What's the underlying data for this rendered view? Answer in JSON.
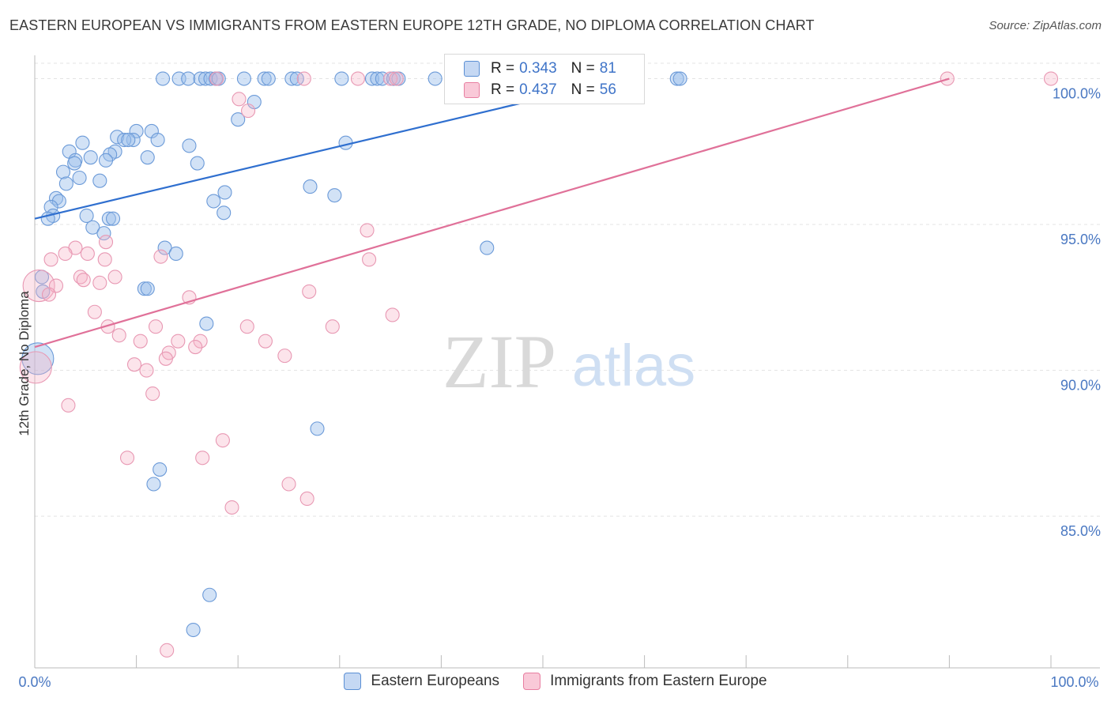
{
  "header": {
    "title": "EASTERN EUROPEAN VS IMMIGRANTS FROM EASTERN EUROPE 12TH GRADE, NO DIPLOMA CORRELATION CHART",
    "source": "Source: ZipAtlas.com"
  },
  "watermark": {
    "zip": "ZIP",
    "atlas": "atlas"
  },
  "legend": {
    "r_label": "R =",
    "n_label": "N =",
    "series1": {
      "r": "0.343",
      "n": "81"
    },
    "series2": {
      "r": "0.437",
      "n": "56"
    }
  },
  "chart_data": {
    "type": "scatter",
    "title": "EASTERN EUROPEAN VS IMMIGRANTS FROM EASTERN EUROPE 12TH GRADE, NO DIPLOMA CORRELATION CHART",
    "xlabel": "",
    "ylabel": "12th Grade, No Diploma",
    "xlim": [
      0,
      100
    ],
    "ylim": [
      79.8,
      100.8
    ],
    "x_tick_labels": [
      "0.0%",
      "100.0%"
    ],
    "y_ticks": [
      85,
      90,
      95,
      100
    ],
    "y_tick_labels": [
      "85.0%",
      "90.0%",
      "95.0%",
      "100.0%"
    ],
    "grid": true,
    "colors": {
      "series1": "#5b8fd4",
      "series2": "#e87fa1",
      "line1": "#2f6fcf",
      "line2": "#e07199"
    },
    "series": [
      {
        "name": "Eastern Europeans",
        "r": 0.343,
        "n": 81,
        "trend": {
          "x0": 0,
          "y0": 95.2,
          "x1": 58,
          "y1": 100
        },
        "points": [
          [
            12.6,
            100
          ],
          [
            14.2,
            100
          ],
          [
            15.1,
            100
          ],
          [
            16.3,
            100
          ],
          [
            16.8,
            100
          ],
          [
            17.3,
            100
          ],
          [
            17.8,
            100
          ],
          [
            18.1,
            100
          ],
          [
            20.6,
            100
          ],
          [
            22.6,
            100
          ],
          [
            23.0,
            100
          ],
          [
            25.3,
            100
          ],
          [
            25.8,
            100
          ],
          [
            30.2,
            100
          ],
          [
            33.2,
            100
          ],
          [
            33.7,
            100
          ],
          [
            34.2,
            100
          ],
          [
            35.3,
            100
          ],
          [
            35.8,
            100
          ],
          [
            39.4,
            100
          ],
          [
            63.2,
            100
          ],
          [
            63.5,
            100
          ],
          [
            49.5,
            100
          ],
          [
            48.0,
            100
          ],
          [
            21.6,
            99.2
          ],
          [
            20.0,
            98.6
          ],
          [
            10.0,
            98.2
          ],
          [
            11.5,
            98.2
          ],
          [
            8.1,
            98.0
          ],
          [
            9.7,
            97.9
          ],
          [
            8.8,
            97.9
          ],
          [
            9.2,
            97.9
          ],
          [
            12.1,
            97.9
          ],
          [
            4.7,
            97.8
          ],
          [
            15.2,
            97.7
          ],
          [
            30.6,
            97.8
          ],
          [
            3.4,
            97.5
          ],
          [
            5.5,
            97.3
          ],
          [
            7.9,
            97.5
          ],
          [
            7.4,
            97.4
          ],
          [
            11.1,
            97.3
          ],
          [
            4.0,
            97.2
          ],
          [
            3.9,
            97.1
          ],
          [
            7.0,
            97.2
          ],
          [
            16.0,
            97.1
          ],
          [
            2.8,
            96.8
          ],
          [
            4.4,
            96.6
          ],
          [
            3.1,
            96.4
          ],
          [
            6.4,
            96.5
          ],
          [
            27.1,
            96.3
          ],
          [
            18.7,
            96.1
          ],
          [
            29.5,
            96.0
          ],
          [
            2.1,
            95.9
          ],
          [
            2.4,
            95.8
          ],
          [
            17.6,
            95.8
          ],
          [
            1.6,
            95.6
          ],
          [
            1.8,
            95.3
          ],
          [
            5.1,
            95.3
          ],
          [
            7.3,
            95.2
          ],
          [
            7.7,
            95.2
          ],
          [
            1.3,
            95.2
          ],
          [
            18.6,
            95.4
          ],
          [
            5.7,
            94.9
          ],
          [
            6.8,
            94.7
          ],
          [
            12.8,
            94.2
          ],
          [
            13.9,
            94.0
          ],
          [
            44.5,
            94.2
          ],
          [
            0.7,
            93.2
          ],
          [
            0.8,
            92.7
          ],
          [
            10.8,
            92.8
          ],
          [
            11.1,
            92.8
          ],
          [
            16.9,
            91.6
          ],
          [
            0.3,
            90.4
          ],
          [
            27.8,
            88.0
          ],
          [
            12.3,
            86.6
          ],
          [
            11.7,
            86.1
          ],
          [
            17.2,
            82.3
          ],
          [
            15.6,
            81.1
          ]
        ]
      },
      {
        "name": "Immigrants from Eastern Europe",
        "r": 0.437,
        "n": 56,
        "trend": {
          "x0": 0,
          "y0": 90.8,
          "x1": 90,
          "y1": 100
        },
        "points": [
          [
            17.9,
            100
          ],
          [
            26.5,
            100
          ],
          [
            31.8,
            100
          ],
          [
            35.0,
            100
          ],
          [
            35.6,
            100
          ],
          [
            89.8,
            100
          ],
          [
            100,
            100
          ],
          [
            20.1,
            99.3
          ],
          [
            21.0,
            98.9
          ],
          [
            32.7,
            94.8
          ],
          [
            7.0,
            94.4
          ],
          [
            4.0,
            94.2
          ],
          [
            3.0,
            94.0
          ],
          [
            5.2,
            94.0
          ],
          [
            1.6,
            93.8
          ],
          [
            12.4,
            93.9
          ],
          [
            6.9,
            93.8
          ],
          [
            32.9,
            93.8
          ],
          [
            7.9,
            93.2
          ],
          [
            4.5,
            93.2
          ],
          [
            4.8,
            93.1
          ],
          [
            6.4,
            93.0
          ],
          [
            0.4,
            92.9
          ],
          [
            2.1,
            92.9
          ],
          [
            1.4,
            92.6
          ],
          [
            27.0,
            92.7
          ],
          [
            15.2,
            92.5
          ],
          [
            5.9,
            92.0
          ],
          [
            35.2,
            91.9
          ],
          [
            7.2,
            91.5
          ],
          [
            11.9,
            91.5
          ],
          [
            20.9,
            91.5
          ],
          [
            29.3,
            91.5
          ],
          [
            8.3,
            91.2
          ],
          [
            10.4,
            91.0
          ],
          [
            14.1,
            91.0
          ],
          [
            16.3,
            91.0
          ],
          [
            22.7,
            91.0
          ],
          [
            15.8,
            90.8
          ],
          [
            13.2,
            90.6
          ],
          [
            24.6,
            90.5
          ],
          [
            12.9,
            90.4
          ],
          [
            0.1,
            90.1
          ],
          [
            9.8,
            90.2
          ],
          [
            11.0,
            90.0
          ],
          [
            11.6,
            89.2
          ],
          [
            3.3,
            88.8
          ],
          [
            18.5,
            87.6
          ],
          [
            9.1,
            87.0
          ],
          [
            16.5,
            87.0
          ],
          [
            25.0,
            86.1
          ],
          [
            26.8,
            85.6
          ],
          [
            19.4,
            85.3
          ],
          [
            13.0,
            80.4
          ]
        ]
      }
    ]
  },
  "bottom_legend": {
    "series1_label": "Eastern Europeans",
    "series2_label": "Immigrants from Eastern Europe"
  }
}
